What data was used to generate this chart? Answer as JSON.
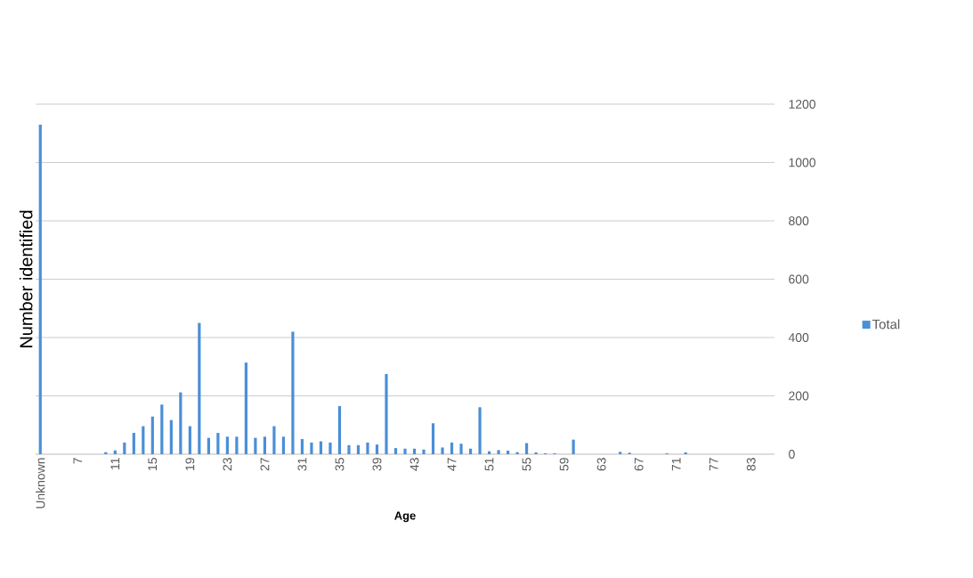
{
  "chart_data": {
    "type": "bar",
    "xlabel": "Age",
    "ylabel": "Number identified",
    "categories": [
      "Unknown",
      null,
      null,
      null,
      "7",
      null,
      null,
      null,
      "11",
      null,
      null,
      null,
      "15",
      null,
      null,
      null,
      "19",
      null,
      null,
      null,
      "23",
      null,
      null,
      null,
      "27",
      null,
      null,
      null,
      "31",
      null,
      null,
      null,
      "35",
      null,
      null,
      null,
      "39",
      null,
      null,
      null,
      "43",
      null,
      null,
      null,
      "47",
      null,
      null,
      null,
      "51",
      null,
      null,
      null,
      "55",
      null,
      null,
      null,
      "59",
      null,
      null,
      null,
      "63",
      null,
      null,
      null,
      "67",
      null,
      null,
      null,
      "71",
      null,
      null,
      null,
      "77",
      null,
      null,
      null,
      "83",
      null,
      null
    ],
    "series": [
      {
        "name": "Total",
        "color": "#4a8fd8",
        "values": [
          1130,
          0,
          0,
          0,
          0,
          0,
          0,
          7,
          13,
          40,
          73,
          96,
          129,
          170,
          117,
          212,
          96,
          450,
          56,
          73,
          60,
          60,
          314,
          56,
          60,
          96,
          60,
          420,
          52,
          40,
          44,
          40,
          165,
          31,
          31,
          40,
          33,
          275,
          21,
          19,
          19,
          16,
          106,
          23,
          40,
          36,
          19,
          161,
          10,
          14,
          12,
          7,
          38,
          6,
          3,
          3,
          0,
          50,
          0,
          0,
          0,
          0,
          8,
          5,
          0,
          0,
          0,
          3,
          0,
          6,
          0,
          0,
          0,
          0,
          0,
          0,
          0,
          0,
          0
        ]
      }
    ],
    "ylim": [
      0,
      1200
    ],
    "yticks": [
      0,
      200,
      400,
      600,
      800,
      1000,
      1200
    ],
    "grid": "y",
    "legend": "right"
  }
}
